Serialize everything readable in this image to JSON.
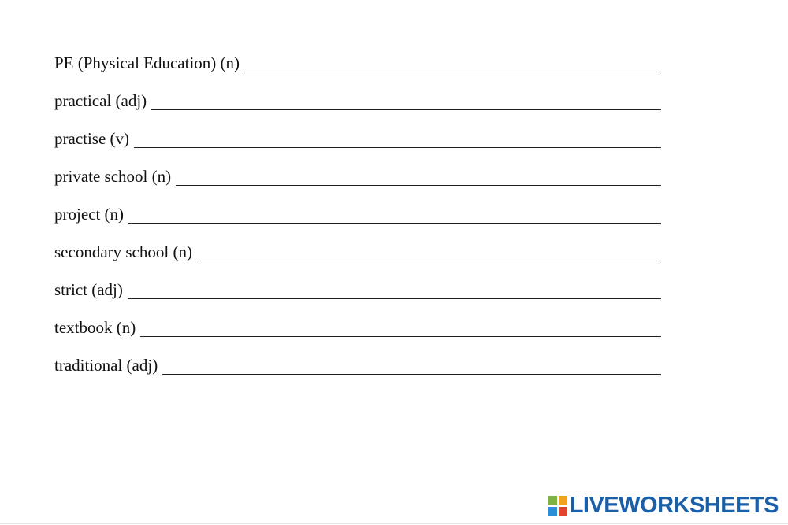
{
  "items": [
    "PE (Physical Education) (n)",
    "practical (adj)",
    "practise (v)",
    "private school (n)",
    "project (n)",
    "secondary school (n)",
    "strict (adj)",
    "textbook (n)",
    "traditional (adj)"
  ],
  "brand": "LIVEWORKSHEETS"
}
